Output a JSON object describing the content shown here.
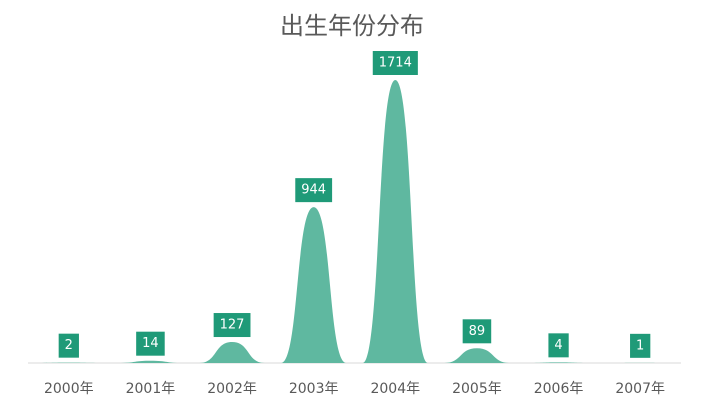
{
  "chart_data": {
    "type": "peak",
    "title": "出生年份分布",
    "categories": [
      "2000年",
      "2001年",
      "2002年",
      "2003年",
      "2004年",
      "2005年",
      "2006年",
      "2007年"
    ],
    "values": [
      2,
      14,
      127,
      944,
      1714,
      89,
      4,
      1
    ],
    "color": "#5fb8a0",
    "label_color": "#1f9a78"
  }
}
